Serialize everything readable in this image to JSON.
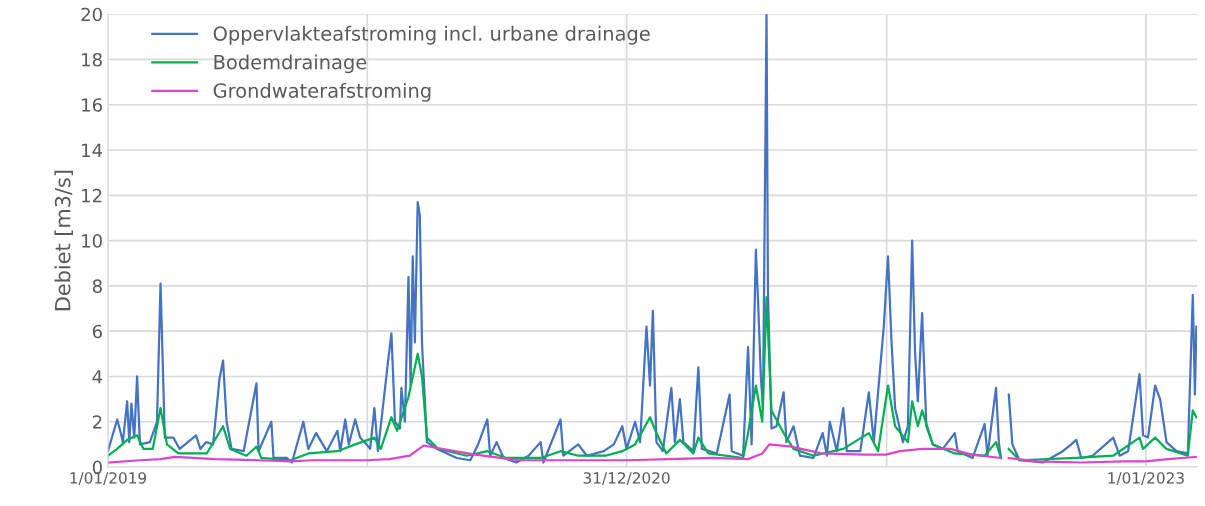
{
  "chart_data": {
    "type": "line",
    "ylabel": "Debiet [m3/s]",
    "xlim": [
      "2019-01-01",
      "2023-03-14"
    ],
    "ylim": [
      0,
      20
    ],
    "yticks": [
      0,
      2,
      4,
      6,
      8,
      10,
      12,
      14,
      16,
      18,
      20
    ],
    "xticks": [
      {
        "value": "2019-01-01",
        "label": "1/01/2019"
      },
      {
        "value": "2020-01-01",
        "label": null
      },
      {
        "value": "2020-12-31",
        "label": "31/12/2020"
      },
      {
        "value": "2022-01-01",
        "label": null
      },
      {
        "value": "2023-01-01",
        "label": "1/01/2023"
      }
    ],
    "grid": true,
    "legend": "top left",
    "marker": "none",
    "line_style": "solid",
    "series": [
      {
        "name": "Oppervlakteafstroming incl. urbane drainage",
        "color": "#4472c4",
        "x": [
          "2019-01-01",
          "2019-01-14",
          "2019-01-19",
          "2019-01-22",
          "2019-01-28",
          "2019-01-31",
          "2019-02-03",
          "2019-02-07",
          "2019-02-11",
          "2019-02-15",
          "2019-03-01",
          "2019-03-11",
          "2019-03-16",
          "2019-03-22",
          "2019-04-03",
          "2019-04-12",
          "2019-05-05",
          "2019-05-11",
          "2019-05-19",
          "2019-05-29",
          "2019-06-07",
          "2019-06-12",
          "2019-06-17",
          "2019-06-24",
          "2019-07-11",
          "2019-07-29",
          "2019-08-01",
          "2019-08-19",
          "2019-08-22",
          "2019-09-10",
          "2019-09-17",
          "2019-10-03",
          "2019-10-10",
          "2019-10-21",
          "2019-11-05",
          "2019-11-20",
          "2019-11-24",
          "2019-12-01",
          "2019-12-06",
          "2019-12-15",
          "2019-12-22",
          "2019-12-31",
          "2020-01-05",
          "2020-01-11",
          "2020-01-16",
          "2020-01-30",
          "2020-02-04",
          "2020-02-09",
          "2020-02-16",
          "2020-02-18",
          "2020-02-23",
          "2020-02-28",
          "2020-03-02",
          "2020-03-05",
          "2020-03-08",
          "2020-03-12",
          "2020-03-15",
          "2020-03-18",
          "2020-03-25",
          "2020-04-08",
          "2020-05-06",
          "2020-05-25",
          "2020-06-05",
          "2020-06-18",
          "2020-06-22",
          "2020-07-01",
          "2020-07-11",
          "2020-07-29",
          "2020-08-15",
          "2020-09-01",
          "2020-09-05",
          "2020-09-29",
          "2020-10-03",
          "2020-10-24",
          "2020-11-05",
          "2020-11-29",
          "2020-12-13",
          "2020-12-25",
          "2020-12-31",
          "2021-01-12",
          "2021-01-19",
          "2021-01-28",
          "2021-02-02",
          "2021-02-06",
          "2021-02-11",
          "2021-02-20",
          "2021-03-04",
          "2021-03-09",
          "2021-03-16",
          "2021-03-21",
          "2021-04-04",
          "2021-04-11",
          "2021-04-16",
          "2021-05-07",
          "2021-05-25",
          "2021-05-28",
          "2021-06-13",
          "2021-06-20",
          "2021-06-25",
          "2021-07-01",
          "2021-07-04",
          "2021-07-08",
          "2021-07-11",
          "2021-07-16",
          "2021-07-18",
          "2021-07-23",
          "2021-07-30",
          "2021-08-09",
          "2021-08-13",
          "2021-08-23",
          "2021-09-01",
          "2021-09-20",
          "2021-10-03",
          "2021-10-09",
          "2021-10-13",
          "2021-10-23",
          "2021-11-01",
          "2021-11-06",
          "2021-11-25",
          "2021-12-07",
          "2021-12-14",
          "2021-12-28",
          "2022-01-03",
          "2022-01-08",
          "2022-01-13",
          "2022-01-24",
          "2022-01-31",
          "2022-02-06",
          "2022-02-10",
          "2022-02-14",
          "2022-02-20",
          "2022-02-26",
          "2022-03-07",
          "2022-03-21",
          "2022-04-07",
          "2022-04-11",
          "2022-05-02",
          "2022-05-19",
          "2022-05-23",
          "2022-06-04",
          "2022-06-08",
          "2022-06-11",
          "2022-06-14",
          "2022-06-22",
          "2022-06-27",
          "2022-07-07",
          "2022-08-09",
          "2022-09-06",
          "2022-09-18",
          "2022-09-25",
          "2022-10-02",
          "2022-10-18",
          "2022-11-16",
          "2022-11-25",
          "2022-12-07",
          "2022-12-23",
          "2022-12-28",
          "2023-01-04",
          "2023-01-14",
          "2023-01-21",
          "2023-01-30",
          "2023-02-13",
          "2023-03-01",
          "2023-03-08",
          "2023-03-11",
          "2023-03-13"
        ],
        "values": [
          0.7,
          2.1,
          1.5,
          1.1,
          2.9,
          1.1,
          2.8,
          1.3,
          4.0,
          1.0,
          1.1,
          2.0,
          8.1,
          1.3,
          1.3,
          0.8,
          1.4,
          0.8,
          1.1,
          1.0,
          3.9,
          4.7,
          2.0,
          0.8,
          0.7,
          3.7,
          0.7,
          2.0,
          0.4,
          0.4,
          0.2,
          2.0,
          0.8,
          1.5,
          0.7,
          1.6,
          0.7,
          2.1,
          1.0,
          2.1,
          1.3,
          1.0,
          0.8,
          2.6,
          0.7,
          4.6,
          5.9,
          2.0,
          1.7,
          3.5,
          2.0,
          8.4,
          3.6,
          9.3,
          5.5,
          11.7,
          11.1,
          5.5,
          1.1,
          0.8,
          0.4,
          0.3,
          1.0,
          2.1,
          0.5,
          1.1,
          0.4,
          0.2,
          0.5,
          1.1,
          0.2,
          2.1,
          0.5,
          1.0,
          0.5,
          0.7,
          1.0,
          1.8,
          0.8,
          2.0,
          1.1,
          6.2,
          3.6,
          6.9,
          1.1,
          0.7,
          3.5,
          1.1,
          3.0,
          1.1,
          0.7,
          4.4,
          0.8,
          0.6,
          3.2,
          0.7,
          0.5,
          5.3,
          1.0,
          9.6,
          7.4,
          4.0,
          2.6,
          20.0,
          7.7,
          1.7,
          1.8,
          3.3,
          1.1,
          1.8,
          0.5,
          0.4,
          1.5,
          0.5,
          2.0,
          0.7,
          2.6,
          0.7,
          0.7,
          3.3,
          1.1,
          6.2,
          9.3,
          5.5,
          2.6,
          1.1,
          1.8,
          10.0,
          5.1,
          2.9,
          6.8,
          1.8,
          1.0,
          0.8,
          1.5,
          0.7,
          0.4,
          1.9,
          0.5,
          3.5,
          1.1,
          0.4,
          null,
          3.2,
          1.0,
          0.3,
          0.2,
          0.7,
          1.0,
          1.2,
          0.4,
          0.5,
          1.3,
          0.5,
          0.7,
          4.1,
          1.4,
          1.3,
          3.6,
          3.0,
          1.1,
          0.7,
          0.6,
          7.6,
          3.2,
          6.2
        ]
      },
      {
        "name": "Bodemdrainage",
        "color": "#00b050",
        "x": [
          "2019-01-01",
          "2019-01-14",
          "2019-01-28",
          "2019-02-11",
          "2019-02-20",
          "2019-03-05",
          "2019-03-16",
          "2019-03-25",
          "2019-04-10",
          "2019-05-20",
          "2019-06-12",
          "2019-06-22",
          "2019-07-15",
          "2019-07-29",
          "2019-08-05",
          "2019-09-15",
          "2019-10-10",
          "2019-11-20",
          "2019-12-15",
          "2020-01-11",
          "2020-01-20",
          "2020-02-04",
          "2020-02-12",
          "2020-02-28",
          "2020-03-12",
          "2020-03-18",
          "2020-03-25",
          "2020-04-10",
          "2020-05-20",
          "2020-06-18",
          "2020-07-15",
          "2020-09-01",
          "2020-09-29",
          "2020-10-24",
          "2020-12-01",
          "2020-12-25",
          "2021-01-12",
          "2021-02-02",
          "2021-02-11",
          "2021-02-25",
          "2021-03-16",
          "2021-04-04",
          "2021-04-11",
          "2021-04-25",
          "2021-06-13",
          "2021-06-20",
          "2021-07-01",
          "2021-07-10",
          "2021-07-16",
          "2021-07-23",
          "2021-08-09",
          "2021-08-23",
          "2021-09-20",
          "2021-11-01",
          "2021-12-07",
          "2021-12-20",
          "2022-01-03",
          "2022-01-13",
          "2022-01-31",
          "2022-02-06",
          "2022-02-14",
          "2022-02-20",
          "2022-03-07",
          "2022-04-07",
          "2022-05-19",
          "2022-06-04",
          "2022-06-11",
          "2022-06-14",
          "2022-06-22",
          "2022-07-07",
          "2022-09-25",
          "2022-11-16",
          "2022-12-23",
          "2022-12-28",
          "2023-01-14",
          "2023-01-30",
          "2023-03-01",
          "2023-03-08",
          "2023-03-13"
        ],
        "values": [
          0.5,
          0.8,
          1.2,
          1.4,
          0.8,
          0.8,
          2.6,
          1.0,
          0.6,
          0.6,
          1.8,
          0.8,
          0.5,
          0.9,
          0.4,
          0.3,
          0.6,
          0.7,
          1.0,
          1.3,
          0.8,
          2.2,
          1.6,
          3.1,
          5.0,
          4.0,
          1.3,
          0.8,
          0.5,
          0.7,
          0.4,
          0.4,
          0.7,
          0.5,
          0.5,
          0.7,
          1.0,
          2.2,
          1.5,
          0.6,
          1.2,
          0.6,
          1.3,
          0.6,
          0.4,
          1.5,
          3.6,
          2.0,
          7.5,
          2.5,
          1.5,
          0.8,
          0.5,
          0.8,
          1.5,
          0.7,
          3.6,
          1.8,
          1.1,
          2.9,
          1.8,
          2.5,
          1.0,
          0.6,
          0.5,
          1.1,
          0.4,
          null,
          0.8,
          0.3,
          0.4,
          0.5,
          1.3,
          0.8,
          1.3,
          0.8,
          0.5,
          2.5,
          2.2
        ]
      },
      {
        "name": "Grondwaterafstroming",
        "color": "#dd44cc",
        "x": [
          "2019-01-01",
          "2019-02-15",
          "2019-03-16",
          "2019-04-05",
          "2019-05-01",
          "2019-06-01",
          "2019-08-01",
          "2019-09-15",
          "2019-10-15",
          "2019-12-31",
          "2020-02-01",
          "2020-03-01",
          "2020-03-20",
          "2020-04-15",
          "2020-06-01",
          "2020-08-01",
          "2020-10-01",
          "2020-12-31",
          "2021-03-01",
          "2021-05-01",
          "2021-06-20",
          "2021-07-10",
          "2021-07-20",
          "2021-08-20",
          "2021-10-01",
          "2021-12-01",
          "2021-12-31",
          "2022-01-20",
          "2022-02-20",
          "2022-04-01",
          "2022-05-01",
          "2022-06-11",
          "2022-06-14",
          "2022-06-22",
          "2022-08-01",
          "2022-10-01",
          "2022-12-01",
          "2023-01-01",
          "2023-02-01",
          "2023-03-13"
        ],
        "values": [
          0.2,
          0.3,
          0.35,
          0.45,
          0.4,
          0.35,
          0.3,
          0.25,
          0.3,
          0.3,
          0.35,
          0.5,
          0.95,
          0.8,
          0.55,
          0.3,
          0.3,
          0.3,
          0.35,
          0.4,
          0.35,
          0.6,
          1.0,
          0.9,
          0.6,
          0.55,
          0.55,
          0.7,
          0.8,
          0.8,
          0.55,
          0.4,
          null,
          0.4,
          0.25,
          0.2,
          0.25,
          0.25,
          0.35,
          0.45
        ]
      }
    ]
  }
}
